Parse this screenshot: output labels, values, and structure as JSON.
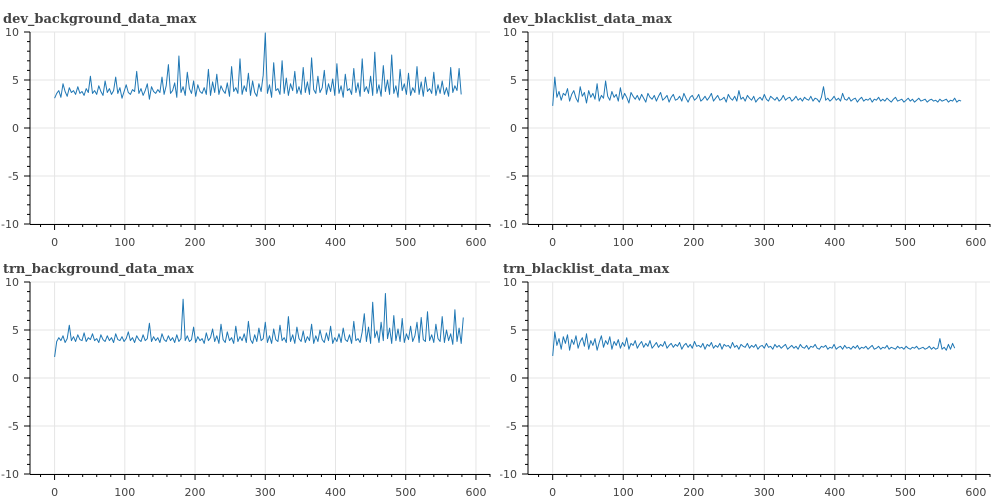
{
  "chart_data": [
    {
      "type": "line",
      "title": "dev_background_data_max",
      "xlim": [
        -35,
        620
      ],
      "ylim": [
        -10,
        10
      ],
      "xticks": [
        0,
        100,
        200,
        300,
        400,
        500,
        600
      ],
      "yticks": [
        -10,
        -5,
        0,
        5,
        10
      ],
      "grid": true,
      "series_color": "#1f77b4",
      "series": [
        {
          "x_start": 0,
          "x_step": 3,
          "values": [
            3.1,
            3.6,
            3.9,
            3.2,
            4.6,
            3.8,
            3.3,
            4.2,
            3.7,
            3.9,
            3.5,
            4.3,
            3.6,
            3.8,
            3.4,
            4.1,
            3.7,
            5.4,
            3.6,
            3.9,
            3.5,
            4.4,
            3.8,
            3.4,
            4.9,
            3.7,
            4.1,
            3.5,
            3.9,
            5.3,
            3.6,
            4.2,
            3.1,
            3.8,
            4.5,
            3.7,
            3.5,
            4.0,
            3.8,
            5.9,
            3.6,
            4.1,
            3.4,
            3.9,
            4.6,
            3.0,
            4.3,
            3.8,
            3.6,
            4.0,
            3.7,
            5.3,
            3.5,
            4.4,
            6.6,
            3.6,
            3.9,
            4.7,
            3.2,
            7.5,
            3.7,
            4.3,
            3.4,
            5.8,
            4.1,
            3.6,
            4.9,
            3.3,
            4.5,
            3.8,
            3.6,
            4.2,
            3.5,
            6.1,
            3.4,
            4.8,
            3.7,
            5.6,
            3.5,
            4.4,
            3.9,
            3.6,
            4.7,
            3.3,
            6.4,
            3.8,
            4.2,
            3.6,
            7.2,
            3.5,
            4.4,
            3.8,
            5.7,
            3.4,
            4.9,
            3.7,
            3.3,
            4.6,
            3.8,
            5.5,
            9.9,
            3.6,
            4.5,
            3.2,
            6.8,
            3.9,
            4.1,
            3.5,
            7.0,
            3.6,
            5.2,
            3.4,
            4.6,
            3.9,
            5.9,
            3.6,
            4.3,
            3.5,
            6.3,
            3.7,
            4.8,
            3.5,
            7.3,
            4.0,
            3.6,
            5.4,
            3.7,
            4.2,
            6.0,
            3.5,
            4.6,
            3.8,
            5.1,
            3.4,
            6.7,
            3.6,
            4.4,
            3.2,
            5.6,
            3.9,
            4.1,
            3.5,
            6.2,
            3.7,
            4.7,
            3.3,
            7.2,
            3.8,
            4.3,
            3.6,
            5.4,
            3.4,
            7.9,
            3.6,
            4.5,
            3.3,
            6.5,
            3.8,
            5.0,
            3.5,
            7.6,
            3.6,
            4.4,
            3.2,
            6.1,
            3.9,
            4.6,
            3.5,
            5.7,
            3.4,
            4.2,
            3.7,
            6.4,
            3.5,
            4.8,
            3.3,
            5.3,
            3.8,
            4.1,
            3.6,
            5.8,
            3.4,
            4.5,
            3.6,
            4.9,
            3.5,
            4.2,
            3.3,
            6.3,
            3.7,
            4.4,
            3.9,
            6.2,
            3.5
          ]
        }
      ]
    },
    {
      "type": "line",
      "title": "dev_blacklist_data_max",
      "xlim": [
        -35,
        620
      ],
      "ylim": [
        -10,
        10
      ],
      "xticks": [
        0,
        100,
        200,
        300,
        400,
        500,
        600
      ],
      "yticks": [
        -10,
        -5,
        0,
        5,
        10
      ],
      "grid": true,
      "series_color": "#1f77b4",
      "series": [
        {
          "x_start": 0,
          "x_step": 3,
          "values": [
            2.3,
            5.3,
            3.2,
            3.8,
            2.9,
            3.6,
            3.4,
            4.1,
            2.8,
            3.5,
            3.9,
            3.1,
            2.7,
            4.3,
            3.3,
            3.7,
            2.6,
            3.9,
            3.2,
            3.6,
            3.0,
            4.6,
            2.8,
            3.4,
            3.1,
            4.9,
            3.3,
            2.9,
            3.8,
            3.2,
            3.5,
            2.8,
            4.2,
            3.0,
            3.6,
            3.2,
            2.6,
            3.7,
            3.3,
            3.0,
            3.4,
            2.9,
            3.5,
            3.1,
            2.7,
            3.6,
            3.2,
            3.0,
            3.4,
            2.8,
            3.3,
            3.7,
            2.9,
            3.1,
            3.4,
            2.7,
            3.2,
            3.5,
            2.9,
            3.0,
            3.3,
            2.8,
            3.6,
            3.1,
            2.7,
            3.2,
            3.4,
            2.9,
            3.1,
            3.5,
            2.8,
            3.0,
            3.3,
            2.9,
            3.2,
            3.6,
            2.8,
            3.1,
            3.4,
            2.9,
            3.0,
            3.2,
            2.7,
            3.5,
            3.1,
            2.9,
            3.3,
            2.8,
            3.9,
            3.0,
            3.2,
            2.8,
            3.4,
            3.1,
            2.9,
            3.3,
            2.7,
            3.0,
            3.2,
            2.9,
            3.5,
            3.0,
            2.8,
            3.3,
            3.1,
            2.9,
            3.2,
            2.8,
            3.0,
            3.4,
            2.9,
            3.1,
            3.2,
            2.8,
            3.0,
            3.3,
            2.9,
            3.1,
            2.8,
            3.2,
            3.0,
            2.9,
            3.3,
            2.8,
            3.1,
            3.0,
            2.7,
            3.2,
            4.3,
            2.9,
            3.1,
            2.8,
            3.0,
            3.3,
            2.9,
            3.1,
            2.8,
            3.6,
            3.0,
            2.9,
            3.2,
            2.8,
            3.0,
            3.1,
            2.7,
            3.0,
            3.2,
            2.8,
            3.0,
            2.9,
            3.1,
            2.7,
            3.0,
            2.9,
            3.2,
            2.8,
            3.0,
            2.8,
            3.1,
            2.9,
            2.7,
            3.0,
            3.2,
            2.8,
            2.9,
            3.0,
            2.7,
            2.9,
            3.1,
            2.8,
            3.0,
            2.7,
            2.9,
            3.1,
            2.8,
            2.9,
            3.0,
            2.7,
            2.9,
            3.0,
            2.8,
            2.9,
            2.7,
            3.0,
            2.8,
            2.9,
            3.0,
            2.7,
            2.9,
            2.8,
            3.1,
            2.7,
            2.9,
            2.8
          ]
        }
      ]
    },
    {
      "type": "line",
      "title": "trn_background_data_max",
      "xlim": [
        -35,
        620
      ],
      "ylim": [
        -10,
        10
      ],
      "xticks": [
        0,
        100,
        200,
        300,
        400,
        500,
        600
      ],
      "yticks": [
        -10,
        -5,
        0,
        5,
        10
      ],
      "grid": true,
      "series_color": "#1f77b4",
      "series": [
        {
          "x_start": 0,
          "x_step": 3,
          "values": [
            2.2,
            3.8,
            4.2,
            3.9,
            4.4,
            3.7,
            4.1,
            5.5,
            3.9,
            4.3,
            3.8,
            4.5,
            4.0,
            3.9,
            4.7,
            3.8,
            4.2,
            4.0,
            4.6,
            3.9,
            4.1,
            3.7,
            4.5,
            4.0,
            3.8,
            4.4,
            3.9,
            4.2,
            3.7,
            4.6,
            4.0,
            3.9,
            4.3,
            3.8,
            4.1,
            4.8,
            3.9,
            4.2,
            3.7,
            4.4,
            4.0,
            3.8,
            4.5,
            3.9,
            4.1,
            5.7,
            3.8,
            4.3,
            3.9,
            4.2,
            3.7,
            4.6,
            4.0,
            3.8,
            4.4,
            3.9,
            4.2,
            3.7,
            4.5,
            3.8,
            4.1,
            8.2,
            3.9,
            4.4,
            3.8,
            4.0,
            5.3,
            3.7,
            4.3,
            3.9,
            4.1,
            3.6,
            4.7,
            3.9,
            4.2,
            5.1,
            3.8,
            4.4,
            3.6,
            5.6,
            4.0,
            3.7,
            4.8,
            3.9,
            4.2,
            3.6,
            5.4,
            3.8,
            4.3,
            3.9,
            4.6,
            3.7,
            5.9,
            4.0,
            3.6,
            4.5,
            3.8,
            5.2,
            3.9,
            4.1,
            5.8,
            3.7,
            4.4,
            3.6,
            5.1,
            4.0,
            3.8,
            5.5,
            3.9,
            4.2,
            3.7,
            6.4,
            3.8,
            4.5,
            3.6,
            5.3,
            4.1,
            3.8,
            4.9,
            3.7,
            4.3,
            3.9,
            5.6,
            3.6,
            4.4,
            3.8,
            5.0,
            4.0,
            3.7,
            4.7,
            3.9,
            5.4,
            3.6,
            4.2,
            3.8,
            4.6,
            3.7,
            5.2,
            4.0,
            3.8,
            4.5,
            3.6,
            5.9,
            3.9,
            4.1,
            3.7,
            4.8,
            6.7,
            3.8,
            5.3,
            3.6,
            7.9,
            4.2,
            4.9,
            3.7,
            5.8,
            3.9,
            8.8,
            4.1,
            5.2,
            3.6,
            6.5,
            3.9,
            5.1,
            3.8,
            6.2,
            3.7,
            4.6,
            4.0,
            5.4,
            3.8,
            4.4,
            5.8,
            3.7,
            6.3,
            4.0,
            3.8,
            6.9,
            3.9,
            4.5,
            3.7,
            5.6,
            4.1,
            3.8,
            6.4,
            3.7,
            5.0,
            3.9,
            4.6,
            3.5,
            7.1,
            3.8,
            5.2,
            3.6,
            6.3
          ]
        }
      ]
    },
    {
      "type": "line",
      "title": "trn_blacklist_data_max",
      "xlim": [
        -35,
        620
      ],
      "ylim": [
        -10,
        10
      ],
      "xticks": [
        0,
        100,
        200,
        300,
        400,
        500,
        600
      ],
      "yticks": [
        -10,
        -5,
        0,
        5,
        10
      ],
      "grid": true,
      "series_color": "#1f77b4",
      "series": [
        {
          "x_start": 0,
          "x_step": 3,
          "values": [
            2.3,
            4.8,
            3.4,
            4.1,
            3.0,
            4.3,
            3.6,
            4.5,
            2.9,
            4.0,
            3.5,
            4.4,
            3.1,
            3.8,
            4.2,
            3.3,
            4.6,
            3.0,
            3.9,
            3.4,
            4.1,
            2.9,
            3.7,
            4.4,
            3.2,
            3.9,
            3.5,
            4.3,
            3.0,
            3.8,
            3.4,
            4.0,
            3.1,
            3.7,
            3.3,
            4.2,
            3.0,
            3.6,
            3.4,
            3.9,
            3.1,
            3.5,
            3.8,
            3.2,
            3.6,
            3.3,
            3.9,
            3.1,
            3.4,
            3.7,
            3.2,
            3.5,
            3.3,
            3.8,
            3.1,
            3.4,
            3.6,
            3.2,
            3.5,
            3.3,
            3.7,
            3.0,
            3.4,
            3.6,
            3.2,
            3.5,
            3.1,
            3.8,
            3.3,
            3.4,
            3.2,
            3.6,
            3.0,
            3.5,
            3.3,
            3.7,
            3.1,
            3.4,
            3.2,
            3.6,
            3.0,
            3.5,
            3.3,
            3.4,
            3.1,
            3.7,
            3.2,
            3.4,
            3.0,
            3.5,
            3.3,
            3.2,
            3.6,
            3.1,
            3.4,
            3.2,
            3.5,
            3.0,
            3.3,
            3.4,
            3.1,
            3.6,
            3.2,
            3.3,
            3.0,
            3.5,
            3.2,
            3.4,
            3.1,
            3.3,
            3.5,
            3.0,
            3.2,
            3.4,
            3.1,
            3.3,
            3.0,
            3.5,
            3.2,
            3.1,
            3.4,
            3.0,
            3.3,
            3.2,
            3.5,
            3.1,
            3.0,
            3.3,
            3.2,
            3.4,
            3.0,
            3.2,
            3.1,
            3.5,
            3.0,
            3.2,
            3.3,
            3.0,
            3.4,
            3.1,
            3.2,
            3.0,
            3.3,
            3.1,
            3.4,
            3.0,
            3.2,
            3.1,
            3.3,
            3.0,
            3.2,
            3.4,
            3.0,
            3.1,
            3.3,
            3.0,
            3.2,
            3.1,
            3.4,
            3.0,
            3.2,
            3.1,
            3.0,
            3.3,
            3.1,
            3.2,
            3.0,
            3.3,
            3.1,
            3.0,
            3.2,
            3.1,
            3.3,
            3.0,
            3.1,
            3.2,
            3.0,
            3.1,
            3.3,
            3.0,
            3.2,
            3.0,
            3.1,
            4.1,
            3.0,
            3.2,
            2.9,
            3.5,
            3.0,
            3.6,
            3.1
          ]
        }
      ]
    }
  ]
}
